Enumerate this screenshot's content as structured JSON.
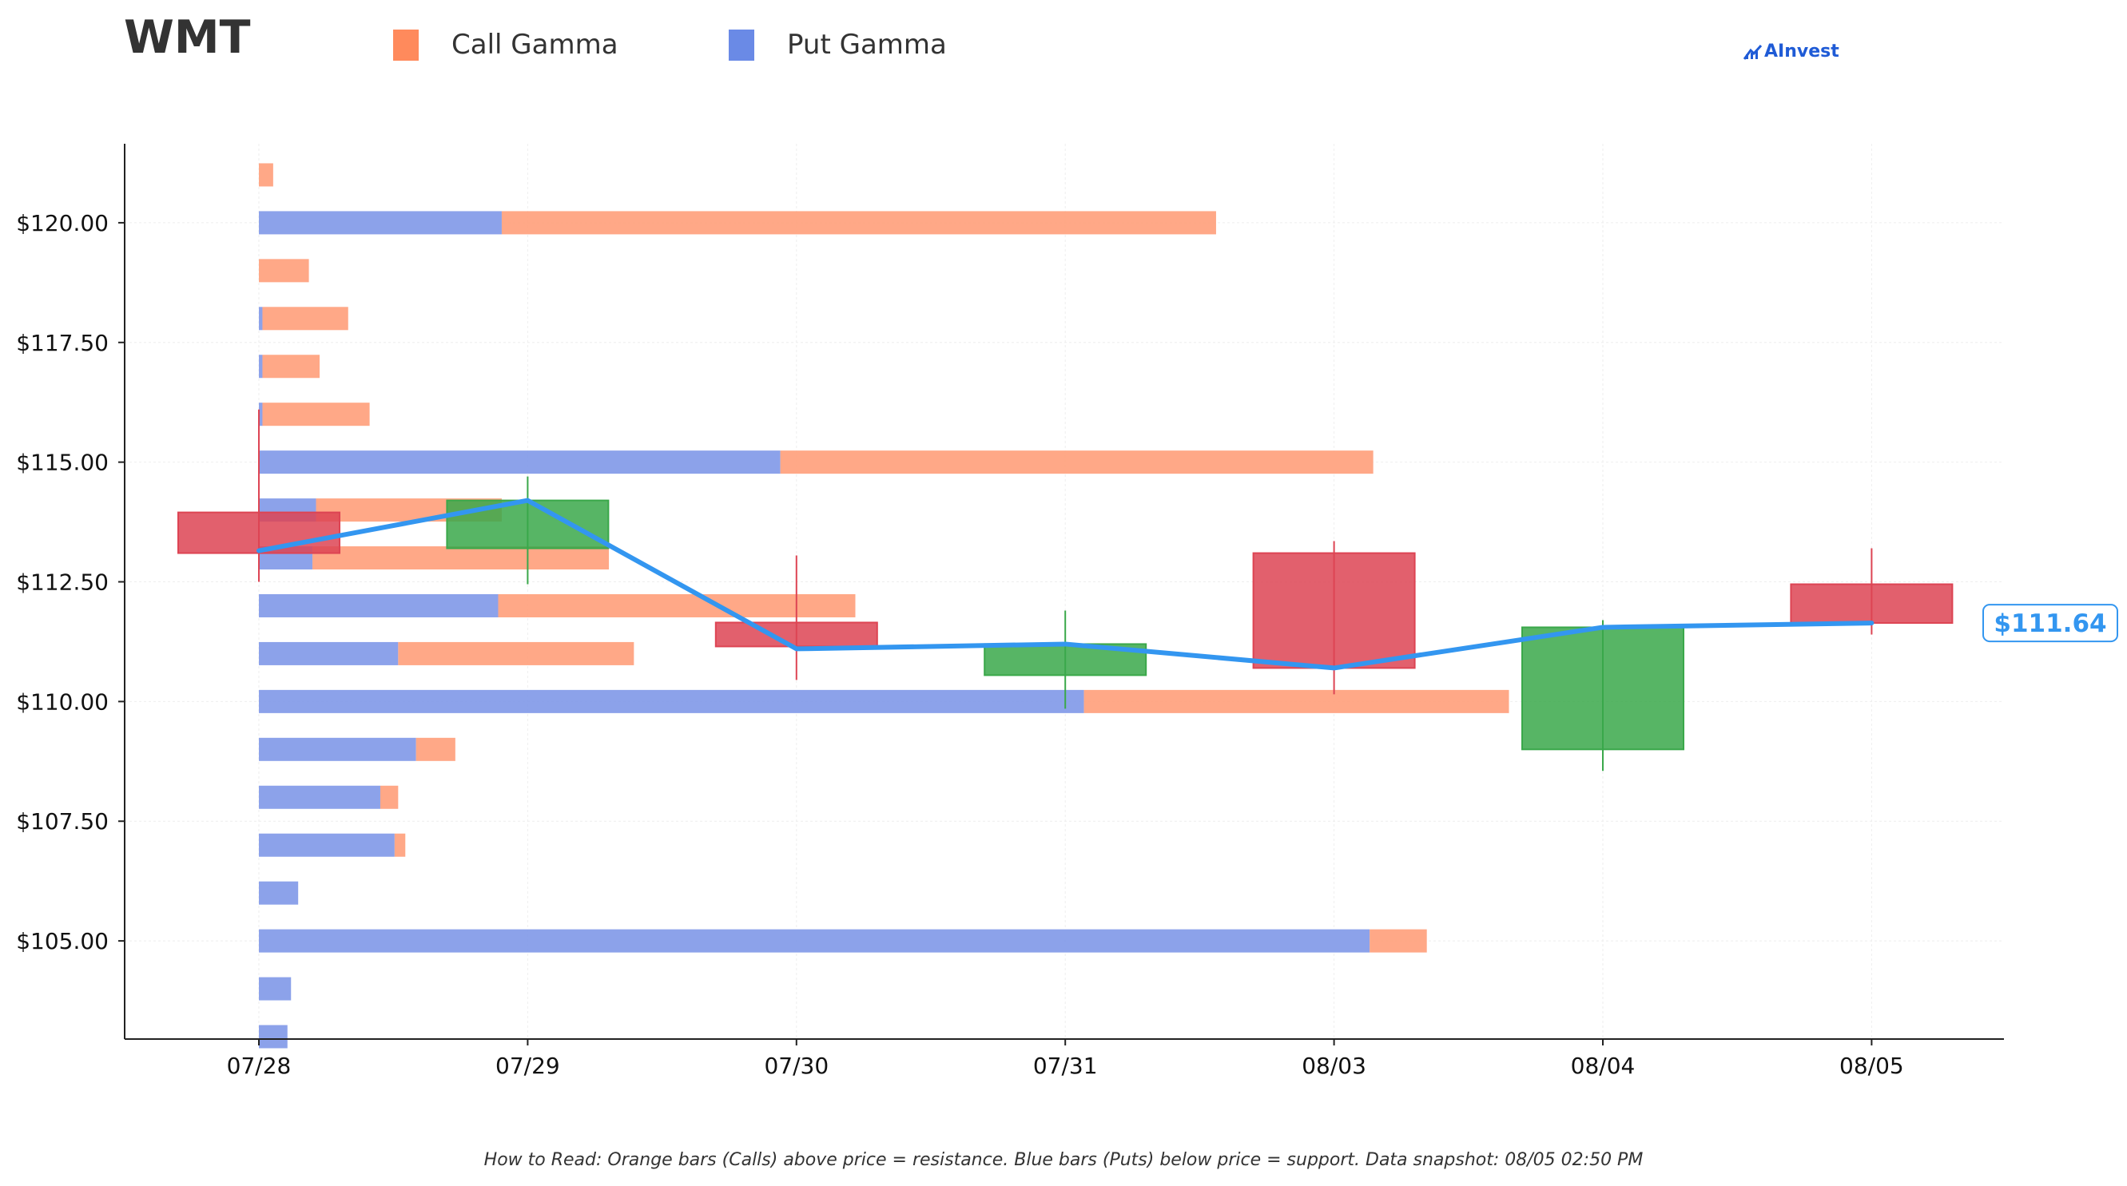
{
  "header": {
    "ticker": "WMT",
    "legend": [
      {
        "label": "Call Gamma",
        "color": "#ff8a5c"
      },
      {
        "label": "Put Gamma",
        "color": "#6a8ae6"
      }
    ],
    "brand": "AInvest"
  },
  "footnote": "How to Read: Orange bars (Calls) above price = resistance. Blue bars (Puts) below price = support. Data snapshot: 08/05 02:50 PM",
  "chart_data": {
    "type": "candlestick",
    "categories": [
      "07/28",
      "07/29",
      "07/30",
      "07/31",
      "08/03",
      "08/04",
      "08/05"
    ],
    "ylim": [
      102.95,
      121.65
    ],
    "yticks": [
      105,
      107.5,
      110,
      112.5,
      115,
      117.5,
      120
    ],
    "ytick_labels": [
      "$105.00",
      "$107.50",
      "$110.00",
      "$112.50",
      "$115.00",
      "$117.50",
      "$120.00"
    ],
    "grid": true,
    "colors": {
      "up": "#3aa84a",
      "down": "#dd4453",
      "call": "#ff9f7a",
      "put": "#7f98e8",
      "price_line": "#3396f0"
    },
    "candles": [
      {
        "date": "07/28",
        "open": 113.95,
        "close": 113.1,
        "high": 116.1,
        "low": 112.5
      },
      {
        "date": "07/29",
        "open": 113.2,
        "close": 114.2,
        "high": 114.7,
        "low": 112.45
      },
      {
        "date": "07/30",
        "open": 111.65,
        "close": 111.15,
        "high": 113.05,
        "low": 110.45
      },
      {
        "date": "07/31",
        "open": 110.55,
        "close": 111.2,
        "high": 111.9,
        "low": 109.85
      },
      {
        "date": "08/03",
        "open": 113.1,
        "close": 110.7,
        "high": 113.35,
        "low": 110.15
      },
      {
        "date": "08/04",
        "open": 109.0,
        "close": 111.55,
        "high": 111.7,
        "low": 108.55
      },
      {
        "date": "08/05",
        "open": 112.45,
        "close": 111.64,
        "high": 113.2,
        "low": 111.4
      }
    ],
    "price_line": [
      113.15,
      114.2,
      111.1,
      111.2,
      110.7,
      111.55,
      111.64
    ],
    "last_price_label": "$111.64",
    "gamma_levels": [
      {
        "strike": 121.0,
        "put": 0.0,
        "call": 0.04
      },
      {
        "strike": 120.0,
        "put": 0.68,
        "call": 2.0
      },
      {
        "strike": 119.0,
        "put": 0.0,
        "call": 0.14
      },
      {
        "strike": 118.0,
        "put": 0.01,
        "call": 0.24
      },
      {
        "strike": 117.0,
        "put": 0.01,
        "call": 0.16
      },
      {
        "strike": 116.0,
        "put": 0.01,
        "call": 0.3
      },
      {
        "strike": 115.0,
        "put": 1.46,
        "call": 1.66
      },
      {
        "strike": 114.0,
        "put": 0.16,
        "call": 0.52
      },
      {
        "strike": 113.0,
        "put": 0.15,
        "call": 0.83
      },
      {
        "strike": 112.0,
        "put": 0.67,
        "call": 1.0
      },
      {
        "strike": 111.0,
        "put": 0.39,
        "call": 0.66
      },
      {
        "strike": 110.0,
        "put": 2.31,
        "call": 1.19
      },
      {
        "strike": 109.0,
        "put": 0.44,
        "call": 0.11
      },
      {
        "strike": 108.0,
        "put": 0.34,
        "call": 0.05
      },
      {
        "strike": 107.0,
        "put": 0.38,
        "call": 0.03
      },
      {
        "strike": 106.0,
        "put": 0.11,
        "call": 0.0
      },
      {
        "strike": 105.0,
        "put": 3.11,
        "call": 0.16
      },
      {
        "strike": 104.0,
        "put": 0.09,
        "call": 0.0
      },
      {
        "strike": 103.0,
        "put": 0.08,
        "call": 0.0
      }
    ]
  }
}
